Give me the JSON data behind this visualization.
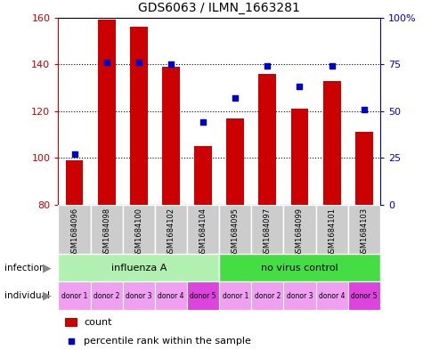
{
  "title": "GDS6063 / ILMN_1663281",
  "categories": [
    "GSM1684096",
    "GSM1684098",
    "GSM1684100",
    "GSM1684102",
    "GSM1684104",
    "GSM1684095",
    "GSM1684097",
    "GSM1684099",
    "GSM1684101",
    "GSM1684103"
  ],
  "bar_values": [
    99,
    159,
    156,
    139,
    105,
    117,
    136,
    121,
    133,
    111
  ],
  "bar_bottom": 80,
  "percentile_values": [
    27,
    76,
    76,
    75,
    44,
    57,
    74,
    63,
    74,
    51
  ],
  "bar_color": "#cc0000",
  "dot_color": "#0000cc",
  "ylim_left": [
    80,
    160
  ],
  "ylim_right": [
    0,
    100
  ],
  "yticks_left": [
    80,
    100,
    120,
    140,
    160
  ],
  "yticks_right": [
    0,
    25,
    50,
    75,
    100
  ],
  "ytick_labels_right": [
    "0",
    "25",
    "50",
    "75",
    "100%"
  ],
  "grid_values": [
    100,
    120,
    140
  ],
  "infection_groups": [
    {
      "label": "influenza A",
      "start": 0,
      "end": 5,
      "color": "#b2f0b2"
    },
    {
      "label": "no virus control",
      "start": 5,
      "end": 10,
      "color": "#44dd44"
    }
  ],
  "individual_labels": [
    "donor 1",
    "donor 2",
    "donor 3",
    "donor 4",
    "donor 5",
    "donor 1",
    "donor 2",
    "donor 3",
    "donor 4",
    "donor 5"
  ],
  "individual_alt_colors": [
    "#f0a0f0",
    "#f0a0f0",
    "#f0a0f0",
    "#f0a0f0",
    "#dd44dd",
    "#f0a0f0",
    "#f0a0f0",
    "#f0a0f0",
    "#f0a0f0",
    "#dd44dd"
  ],
  "row_label_infection": "infection",
  "row_label_individual": "individual",
  "legend_count_label": "count",
  "legend_percentile_label": "percentile rank within the sample",
  "background_color": "#ffffff",
  "plot_bg_color": "#ffffff",
  "left_axis_color": "#cc0000",
  "right_axis_color": "#0000cc",
  "sample_box_color": "#cccccc",
  "sample_box_alt_color": "#bbbbbb",
  "border_color": "#000000"
}
